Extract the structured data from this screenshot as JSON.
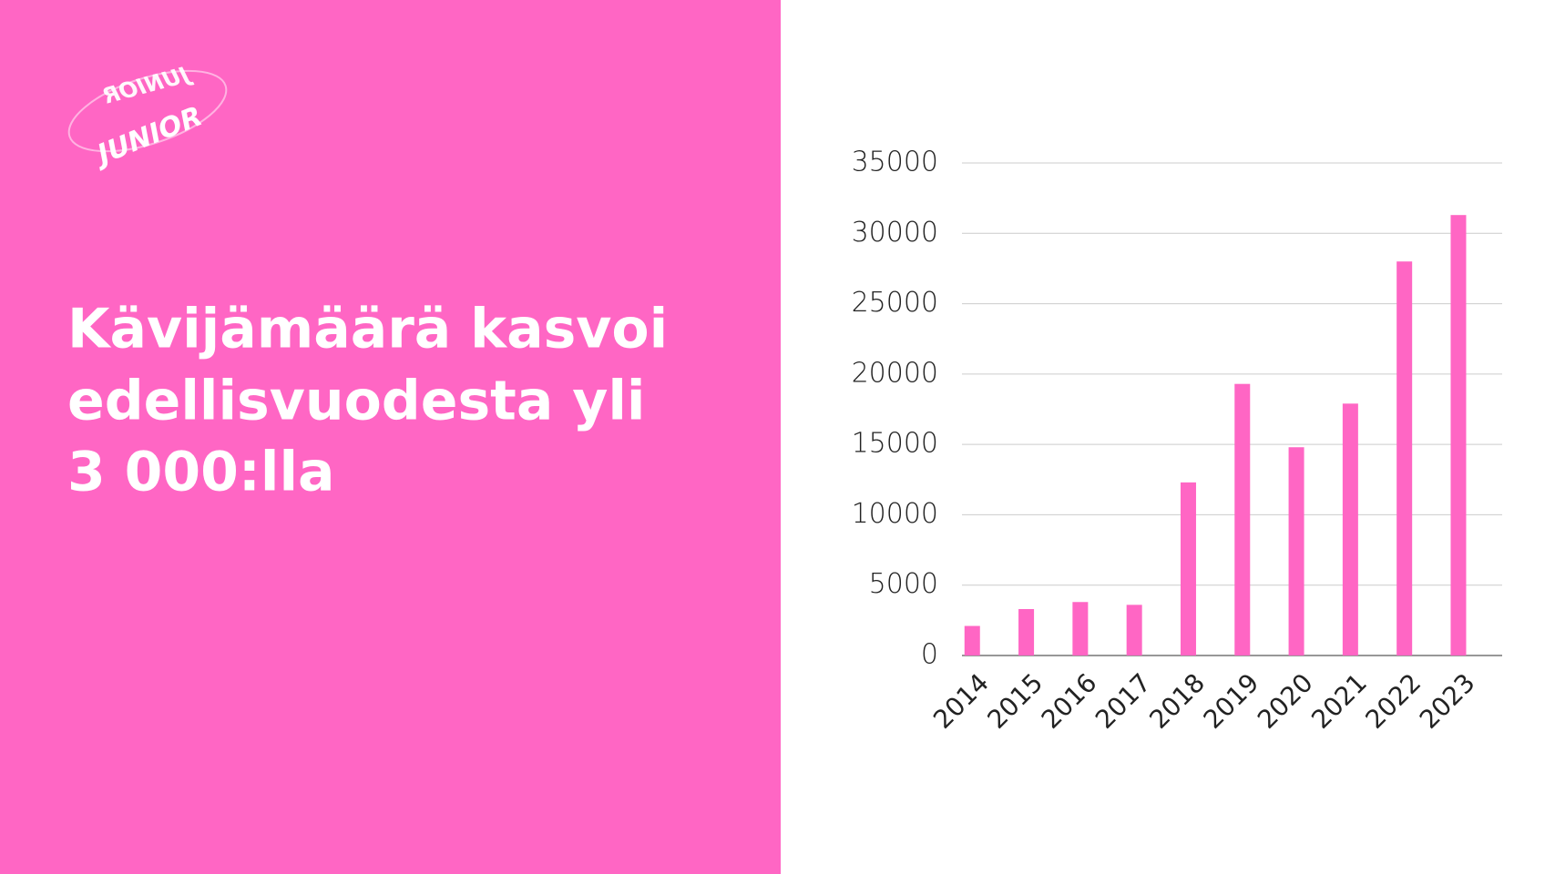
{
  "logo": {
    "text": "JUNIOR"
  },
  "headline": {
    "lines": [
      "Kävijämäärä kasvoi",
      "edellisvuodesta yli",
      "3 000:lla"
    ]
  },
  "chart_data": {
    "type": "bar",
    "categories": [
      "2014",
      "2015",
      "2016",
      "2017",
      "2018",
      "2019",
      "2020",
      "2021",
      "2022",
      "2023"
    ],
    "values": [
      2100,
      3300,
      3800,
      3600,
      12300,
      19300,
      14800,
      17900,
      28000,
      31300
    ],
    "color": "#ff66c4",
    "ylim": [
      0,
      35000
    ],
    "yticks": [
      0,
      5000,
      10000,
      15000,
      20000,
      25000,
      30000,
      35000
    ],
    "grid": true
  }
}
